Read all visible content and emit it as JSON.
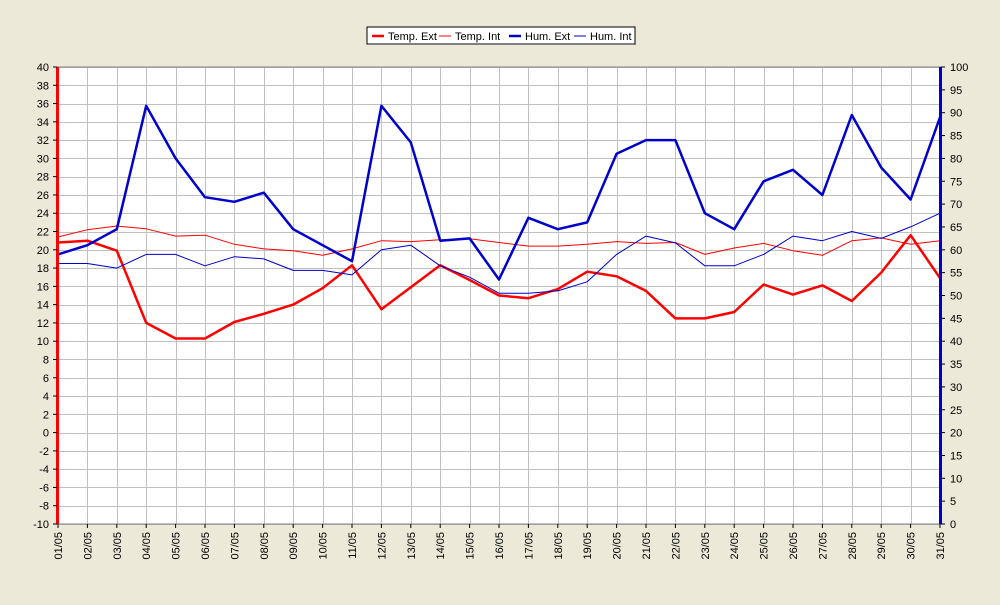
{
  "chart_data": {
    "type": "line",
    "title": "",
    "xlabel": "",
    "ylabel": "",
    "categories": [
      "01/05",
      "02/05",
      "03/05",
      "04/05",
      "05/05",
      "06/05",
      "07/05",
      "08/05",
      "09/05",
      "10/05",
      "11/05",
      "12/05",
      "13/05",
      "14/05",
      "15/05",
      "16/05",
      "17/05",
      "18/05",
      "19/05",
      "20/05",
      "21/05",
      "22/05",
      "23/05",
      "24/05",
      "25/05",
      "26/05",
      "27/05",
      "28/05",
      "29/05",
      "30/05",
      "31/05"
    ],
    "y_left": {
      "min": -10,
      "max": 40,
      "step": 2,
      "color": "#ff0000"
    },
    "y_right": {
      "min": 0,
      "max": 100,
      "step": 5,
      "color": "#0000cc"
    },
    "grid": true,
    "legend_position": "top-center",
    "series": [
      {
        "name": "Temp. Ext",
        "axis": "left",
        "color": "#ff0000",
        "width": 2.5,
        "values": [
          20.8,
          21.0,
          19.9,
          12.0,
          10.3,
          10.3,
          12.1,
          13.0,
          14.0,
          15.8,
          18.3,
          13.5,
          15.9,
          18.3,
          16.7,
          15.0,
          14.7,
          15.7,
          17.6,
          17.1,
          15.5,
          12.5,
          12.5,
          13.2,
          16.2,
          15.1,
          16.1,
          14.4,
          17.5,
          21.6,
          16.9
        ]
      },
      {
        "name": "Temp. Int",
        "axis": "left",
        "color": "#ff0000",
        "width": 1,
        "values": [
          21.4,
          22.2,
          22.6,
          22.3,
          21.5,
          21.6,
          20.6,
          20.1,
          19.9,
          19.4,
          20.1,
          21.0,
          20.9,
          21.1,
          21.2,
          20.8,
          20.4,
          20.4,
          20.6,
          20.9,
          20.7,
          20.8,
          19.5,
          20.2,
          20.7,
          19.9,
          19.4,
          21.0,
          21.3,
          20.6,
          21.0
        ]
      },
      {
        "name": "Hum. Ext",
        "axis": "right",
        "color": "#0000cc",
        "width": 2.5,
        "values": [
          59.0,
          61.0,
          64.5,
          91.5,
          80.0,
          71.5,
          70.5,
          72.5,
          64.5,
          61.0,
          57.5,
          91.5,
          83.5,
          62.0,
          62.5,
          53.5,
          67.0,
          64.5,
          66.0,
          81.0,
          84.0,
          84.0,
          68.0,
          64.5,
          75.0,
          77.5,
          72.0,
          89.5,
          78.0,
          71.0,
          89.0
        ]
      },
      {
        "name": "Hum. Int",
        "axis": "right",
        "color": "#0000cc",
        "width": 1,
        "values": [
          57.0,
          57.0,
          56.0,
          59.0,
          59.0,
          56.5,
          58.5,
          58.0,
          55.5,
          55.5,
          54.5,
          60.0,
          61.0,
          56.5,
          54.0,
          50.5,
          50.5,
          51.0,
          53.0,
          59.0,
          63.0,
          61.5,
          56.5,
          56.5,
          59.0,
          63.0,
          62.0,
          64.0,
          62.5,
          65.0,
          68.0
        ]
      }
    ]
  }
}
